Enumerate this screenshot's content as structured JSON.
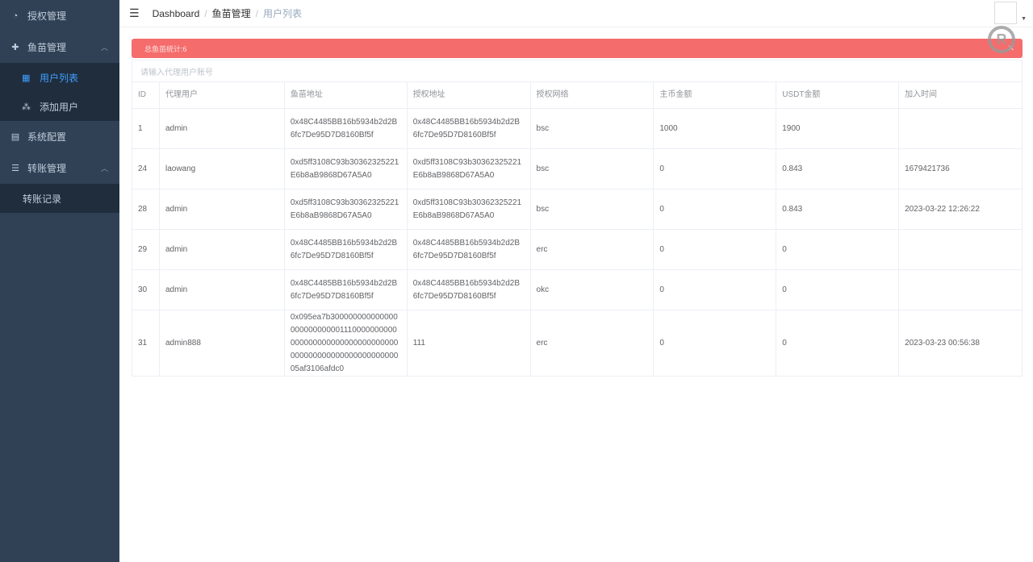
{
  "sidebar": {
    "items": [
      {
        "label": "授权管理",
        "icon": "dashboard-icon"
      },
      {
        "label": "鱼苗管理",
        "icon": "plus-circle-icon",
        "children": [
          {
            "label": "用户列表",
            "icon": "table-icon",
            "active": true
          },
          {
            "label": "添加用户",
            "icon": "tree-icon"
          }
        ]
      },
      {
        "label": "系统配置",
        "icon": "document-icon"
      },
      {
        "label": "转账管理",
        "icon": "list-icon",
        "children": [
          {
            "label": "转账记录"
          }
        ]
      }
    ]
  },
  "breadcrumb": [
    "Dashboard",
    "鱼苗管理",
    "用户列表"
  ],
  "alert": {
    "text": "总鱼苗统计:6",
    "color": "#f56c6c"
  },
  "search": {
    "placeholder": "请输入代理用户账号",
    "value": ""
  },
  "table": {
    "headers": [
      "ID",
      "代理用户",
      "鱼苗地址",
      "授权地址",
      "授权网络",
      "主币金额",
      "USDT金额",
      "加入时间"
    ],
    "rows": [
      [
        "1",
        "admin",
        "0x48C4485BB16b5934b2d2B6fc7De95D7D8160Bf5f",
        "0x48C4485BB16b5934b2d2B6fc7De95D7D8160Bf5f",
        "bsc",
        "1000",
        "1900",
        ""
      ],
      [
        "24",
        "laowang",
        "0xd5ff3108C93b30362325221E6b8aB9868D67A5A0",
        "0xd5ff3108C93b30362325221E6b8aB9868D67A5A0",
        "bsc",
        "0",
        "0.843",
        "1679421736"
      ],
      [
        "28",
        "admin",
        "0xd5ff3108C93b30362325221E6b8aB9868D67A5A0",
        "0xd5ff3108C93b30362325221E6b8aB9868D67A5A0",
        "bsc",
        "0",
        "0.843",
        "2023-03-22 12:26:22"
      ],
      [
        "29",
        "admin",
        "0x48C4485BB16b5934b2d2B6fc7De95D7D8160Bf5f",
        "0x48C4485BB16b5934b2d2B6fc7De95D7D8160Bf5f",
        "erc",
        "0",
        "0",
        ""
      ],
      [
        "30",
        "admin",
        "0x48C4485BB16b5934b2d2B6fc7De95D7D8160Bf5f",
        "0x48C4485BB16b5934b2d2B6fc7De95D7D8160Bf5f",
        "okc",
        "0",
        "0",
        ""
      ],
      [
        "31",
        "admin888",
        "0x095ea7b30000000000000000000000000111000000000000000000000000000000000000000000000000000000000005af3106afdc0",
        "111",
        "erc",
        "0",
        "0",
        "2023-03-23 00:56:38"
      ]
    ]
  }
}
